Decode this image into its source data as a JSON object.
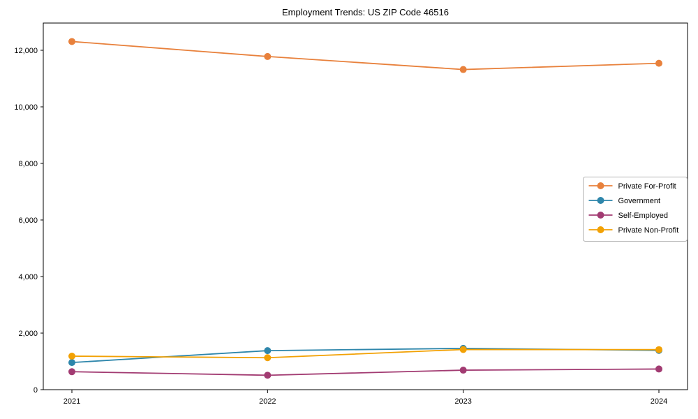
{
  "figure": {
    "background": "#ffffff",
    "title": "Employment Trends: US ZIP Code 46516"
  },
  "chart_data": {
    "type": "line",
    "title": "Employment Trends: US ZIP Code 46516",
    "xlabel": "",
    "ylabel": "",
    "x": [
      2021,
      2022,
      2023,
      2024
    ],
    "x_tick_labels": [
      "2021",
      "2022",
      "2023",
      "2024"
    ],
    "y_ticks": [
      0,
      2000,
      4000,
      6000,
      8000,
      10000,
      12000
    ],
    "y_tick_labels": [
      "0",
      "2,000",
      "4,000",
      "6,000",
      "8,000",
      "10,000",
      "12,000"
    ],
    "ylim": [
      0,
      12963
    ],
    "grid": false,
    "marker": "circle",
    "legend_position": "center-right",
    "series": [
      {
        "name": "Private For-Profit",
        "color": "#E8813C",
        "values": [
          12310,
          11780,
          11320,
          11540
        ]
      },
      {
        "name": "Government",
        "color": "#2E86AB",
        "values": [
          960,
          1380,
          1460,
          1390
        ]
      },
      {
        "name": "Self-Employed",
        "color": "#A23B72",
        "values": [
          635,
          510,
          690,
          730
        ]
      },
      {
        "name": "Private Non-Profit",
        "color": "#F2A104",
        "values": [
          1185,
          1130,
          1420,
          1415
        ]
      }
    ]
  }
}
